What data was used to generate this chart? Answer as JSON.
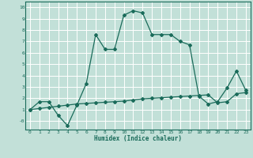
{
  "xlabel": "Humidex (Indice chaleur)",
  "bg_color": "#c2e0d8",
  "grid_color": "#ffffff",
  "line_color": "#1a6b5a",
  "xlim": [
    -0.5,
    23.5
  ],
  "ylim": [
    -0.75,
    10.5
  ],
  "xticks": [
    0,
    1,
    2,
    3,
    4,
    5,
    6,
    7,
    8,
    9,
    10,
    11,
    12,
    13,
    14,
    15,
    16,
    17,
    18,
    19,
    20,
    21,
    22,
    23
  ],
  "yticks": [
    0,
    1,
    2,
    3,
    4,
    5,
    6,
    7,
    8,
    9,
    10
  ],
  "ytick_labels": [
    "-0",
    "1",
    "2",
    "3",
    "4",
    "5",
    "6",
    "7",
    "8",
    "9",
    "10"
  ],
  "curve1_x": [
    0,
    1,
    2,
    3,
    4,
    5,
    6,
    7,
    8,
    9,
    10,
    11,
    12,
    13,
    14,
    15,
    16,
    17,
    18,
    19,
    20,
    21,
    22,
    23
  ],
  "curve1_y": [
    1.0,
    1.7,
    1.7,
    0.5,
    -0.4,
    1.4,
    3.3,
    7.6,
    6.3,
    6.3,
    9.3,
    9.7,
    9.5,
    7.6,
    7.6,
    7.6,
    7.0,
    6.7,
    2.2,
    1.5,
    1.7,
    2.9,
    4.4,
    2.7
  ],
  "curve2_x": [
    0,
    1,
    2,
    3,
    4,
    5,
    6,
    7,
    8,
    9,
    10,
    11,
    12,
    13,
    14,
    15,
    16,
    17,
    18,
    19,
    20,
    21,
    22,
    23
  ],
  "curve2_y": [
    1.0,
    1.1,
    1.2,
    1.3,
    1.4,
    1.5,
    1.55,
    1.6,
    1.65,
    1.7,
    1.75,
    1.85,
    1.95,
    2.0,
    2.05,
    2.1,
    2.15,
    2.2,
    2.25,
    2.3,
    1.6,
    1.7,
    2.4,
    2.5
  ]
}
